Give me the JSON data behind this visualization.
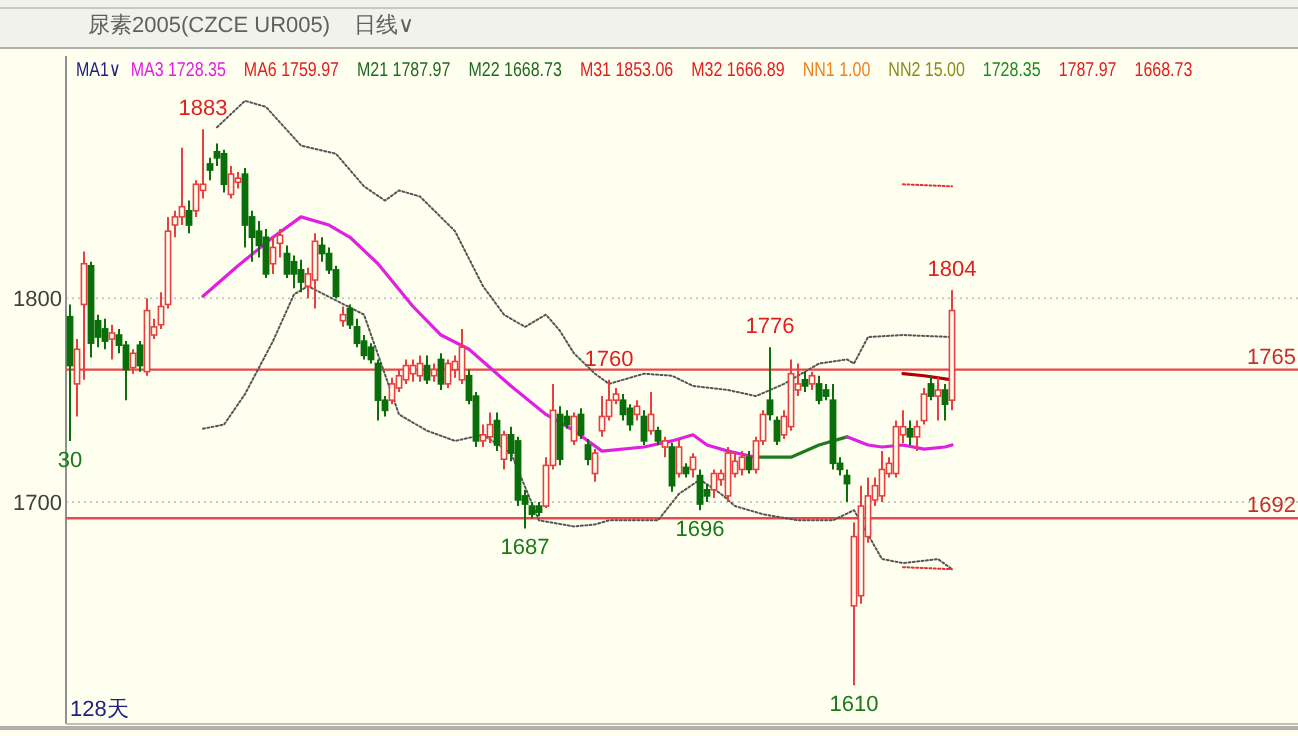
{
  "chart_data": {
    "type": "candlestick",
    "categories": [
      null,
      null,
      null,
      null,
      null,
      null,
      null,
      null,
      null,
      null,
      null,
      null,
      null,
      null,
      null,
      null,
      null,
      null,
      null,
      null,
      null,
      null,
      null,
      null,
      null,
      null,
      null,
      null,
      null,
      null,
      null,
      null,
      null,
      null,
      null,
      null,
      null,
      null,
      null,
      null,
      null,
      null,
      null,
      null,
      null,
      null,
      null,
      null,
      null,
      null,
      null,
      null,
      null,
      null,
      null,
      null,
      null,
      null,
      null,
      null,
      null,
      null,
      null,
      null,
      null,
      null,
      null,
      null,
      null,
      null,
      null,
      null,
      null,
      null,
      null,
      null,
      null,
      null,
      null,
      null,
      null,
      null,
      null,
      null,
      null,
      null,
      null,
      null,
      null,
      null,
      null,
      null,
      null,
      null,
      null,
      null,
      null,
      null,
      null,
      null,
      null,
      null,
      null,
      null,
      null,
      null,
      null,
      null,
      null,
      null,
      null,
      null,
      null,
      null,
      null,
      null,
      null,
      null,
      null,
      null,
      null,
      null,
      null,
      null,
      null,
      null,
      null
    ],
    "ohlc": [
      [
        1791,
        1797,
        1730,
        1767
      ],
      [
        1758,
        1780,
        1742,
        1775
      ],
      [
        1797,
        1823,
        1760,
        1817
      ],
      [
        1816,
        1818,
        1771,
        1778
      ],
      [
        1789,
        1792,
        1776,
        1781
      ],
      [
        1785,
        1790,
        1775,
        1779
      ],
      [
        1780,
        1787,
        1770,
        1783
      ],
      [
        1782,
        1785,
        1773,
        1777
      ],
      [
        1777,
        1779,
        1750,
        1765
      ],
      [
        1766,
        1775,
        1763,
        1773
      ],
      [
        1777,
        1779,
        1764,
        1767
      ],
      [
        1764,
        1800,
        1762,
        1794
      ],
      [
        1782,
        1790,
        1780,
        1786
      ],
      [
        1787,
        1803,
        1785,
        1796
      ],
      [
        1797,
        1840,
        1795,
        1833
      ],
      [
        1836,
        1843,
        1830,
        1840
      ],
      [
        1840,
        1874,
        1836,
        1845
      ],
      [
        1843,
        1848,
        1832,
        1836
      ],
      [
        1843,
        1858,
        1840,
        1856
      ],
      [
        1853,
        1883,
        1849,
        1856
      ],
      [
        1866,
        1869,
        1858,
        1863
      ],
      [
        1872,
        1876,
        1865,
        1869
      ],
      [
        1871,
        1873,
        1852,
        1856
      ],
      [
        1851,
        1865,
        1849,
        1861
      ],
      [
        1857,
        1862,
        1854,
        1859
      ],
      [
        1861,
        1864,
        1825,
        1836
      ],
      [
        1840,
        1843,
        1818,
        1830
      ],
      [
        1833,
        1838,
        1820,
        1826
      ],
      [
        1830,
        1834,
        1810,
        1812
      ],
      [
        1817,
        1830,
        1812,
        1825
      ],
      [
        1827,
        1834,
        1820,
        1831
      ],
      [
        1822,
        1826,
        1810,
        1812
      ],
      [
        1818,
        1821,
        1805,
        1812
      ],
      [
        1814,
        1819,
        1803,
        1808
      ],
      [
        1806,
        1815,
        1800,
        1812
      ],
      [
        1809,
        1832,
        1795,
        1828
      ],
      [
        1826,
        1830,
        1818,
        1822
      ],
      [
        1822,
        1825,
        1812,
        1814
      ],
      [
        1814,
        1816,
        1800,
        1801
      ],
      [
        1789,
        1796,
        1786,
        1792
      ],
      [
        1795,
        1797,
        1785,
        1787
      ],
      [
        1786,
        1790,
        1776,
        1778
      ],
      [
        1779,
        1782,
        1770,
        1772
      ],
      [
        1776,
        1778,
        1768,
        1770
      ],
      [
        1768,
        1770,
        1740,
        1750
      ],
      [
        1750,
        1752,
        1742,
        1745
      ],
      [
        1750,
        1761,
        1748,
        1758
      ],
      [
        1756,
        1765,
        1754,
        1762
      ],
      [
        1760,
        1770,
        1758,
        1767
      ],
      [
        1763,
        1770,
        1759,
        1767
      ],
      [
        1762,
        1772,
        1759,
        1768
      ],
      [
        1767,
        1772,
        1758,
        1760
      ],
      [
        1762,
        1768,
        1759,
        1765
      ],
      [
        1770,
        1773,
        1755,
        1758
      ],
      [
        1758,
        1770,
        1756,
        1768
      ],
      [
        1765,
        1772,
        1761,
        1769
      ],
      [
        1760,
        1785,
        1758,
        1776
      ],
      [
        1762,
        1765,
        1748,
        1750
      ],
      [
        1752,
        1754,
        1727,
        1730
      ],
      [
        1730,
        1738,
        1727,
        1733
      ],
      [
        1732,
        1744,
        1729,
        1738
      ],
      [
        1740,
        1744,
        1725,
        1728
      ],
      [
        1721,
        1735,
        1716,
        1733
      ],
      [
        1733,
        1737,
        1720,
        1724
      ],
      [
        1730,
        1732,
        1698,
        1701
      ],
      [
        1703,
        1706,
        1687,
        1699
      ],
      [
        1698,
        1700,
        1692,
        1694
      ],
      [
        1698,
        1700,
        1693,
        1695
      ],
      [
        1698,
        1722,
        1697,
        1718
      ],
      [
        1718,
        1758,
        1716,
        1745
      ],
      [
        1743,
        1747,
        1718,
        1721
      ],
      [
        1742,
        1745,
        1736,
        1738
      ],
      [
        1730,
        1744,
        1728,
        1742
      ],
      [
        1743,
        1746,
        1731,
        1733
      ],
      [
        1728,
        1731,
        1718,
        1721
      ],
      [
        1714,
        1726,
        1710,
        1724
      ],
      [
        1735,
        1752,
        1732,
        1742
      ],
      [
        1742,
        1760,
        1740,
        1750
      ],
      [
        1750,
        1756,
        1748,
        1753
      ],
      [
        1750,
        1753,
        1740,
        1743
      ],
      [
        1746,
        1748,
        1735,
        1738
      ],
      [
        1743,
        1750,
        1740,
        1747
      ],
      [
        1742,
        1745,
        1728,
        1730
      ],
      [
        1735,
        1754,
        1733,
        1743
      ],
      [
        1735,
        1737,
        1728,
        1730
      ],
      [
        1727,
        1732,
        1722,
        1730
      ],
      [
        1727,
        1729,
        1705,
        1708
      ],
      [
        1714,
        1731,
        1712,
        1727
      ],
      [
        1717,
        1719,
        1712,
        1714
      ],
      [
        1716,
        1724,
        1712,
        1722
      ],
      [
        1713,
        1716,
        1696,
        1699
      ],
      [
        1706,
        1709,
        1700,
        1703
      ],
      [
        1706,
        1716,
        1702,
        1714
      ],
      [
        1711,
        1716,
        1708,
        1714
      ],
      [
        1703,
        1727,
        1700,
        1724
      ],
      [
        1714,
        1725,
        1712,
        1720
      ],
      [
        1716,
        1725,
        1713,
        1722
      ],
      [
        1722,
        1725,
        1714,
        1716
      ],
      [
        1716,
        1732,
        1714,
        1730
      ],
      [
        1730,
        1745,
        1728,
        1743
      ],
      [
        1750,
        1776,
        1740,
        1743
      ],
      [
        1740,
        1742,
        1728,
        1730
      ],
      [
        1733,
        1745,
        1731,
        1742
      ],
      [
        1737,
        1770,
        1735,
        1763
      ],
      [
        1755,
        1768,
        1752,
        1758
      ],
      [
        1760,
        1764,
        1754,
        1757
      ],
      [
        1758,
        1764,
        1755,
        1762
      ],
      [
        1758,
        1762,
        1748,
        1750
      ],
      [
        1755,
        1758,
        1750,
        1752
      ],
      [
        1750,
        1758,
        1716,
        1719
      ],
      [
        1719,
        1722,
        1713,
        1716
      ],
      [
        1713,
        1716,
        1700,
        1709
      ],
      [
        1649,
        1690,
        1610,
        1683
      ],
      [
        1654,
        1708,
        1650,
        1698
      ],
      [
        1683,
        1712,
        1680,
        1703
      ],
      [
        1701,
        1712,
        1698,
        1708
      ],
      [
        1703,
        1725,
        1700,
        1716
      ],
      [
        1714,
        1722,
        1712,
        1719
      ],
      [
        1714,
        1740,
        1712,
        1737
      ],
      [
        1733,
        1745,
        1729,
        1737
      ],
      [
        1736,
        1740,
        1728,
        1732
      ],
      [
        1732,
        1740,
        1725,
        1737
      ],
      [
        1740,
        1756,
        1738,
        1753
      ],
      [
        1758,
        1762,
        1750,
        1752
      ],
      [
        1752,
        1761,
        1740,
        1755
      ],
      [
        1755,
        1758,
        1740,
        1748
      ],
      [
        1750,
        1804,
        1745,
        1794
      ]
    ],
    "series": [
      {
        "type": "line",
        "color": "#e020e0",
        "line_style": "solid",
        "values": [
          null,
          null,
          null,
          null,
          null,
          null,
          null,
          null,
          null,
          null,
          null,
          null,
          null,
          null,
          null,
          null,
          null,
          null,
          null,
          1801,
          null,
          null,
          null,
          null,
          1816,
          null,
          null,
          null,
          null,
          1830,
          null,
          null,
          null,
          1840,
          null,
          null,
          null,
          1836,
          null,
          null,
          1830,
          null,
          null,
          null,
          1817,
          null,
          null,
          null,
          null,
          1796,
          null,
          null,
          null,
          1782,
          null,
          null,
          null,
          1775,
          null,
          null,
          null,
          null,
          null,
          1757,
          null,
          null,
          null,
          null,
          1743,
          null,
          null,
          null,
          1735,
          null,
          null,
          null,
          1725,
          null,
          null,
          null,
          null,
          null,
          1727,
          null,
          null,
          null,
          1730,
          null,
          null,
          1733,
          null,
          1728,
          null,
          null,
          1725,
          null,
          null,
          null,
          1722,
          null,
          null,
          null,
          null,
          null,
          null,
          null,
          null,
          null,
          null,
          null,
          null,
          null,
          null,
          null,
          null,
          null,
          null,
          null,
          null,
          null,
          null,
          null,
          null,
          null,
          null,
          null,
          null
        ]
      },
      {
        "type": "line",
        "color": "#1f7a1f",
        "line_style": "solid",
        "values": [
          null,
          null,
          null,
          null,
          null,
          null,
          null,
          null,
          null,
          null,
          null,
          null,
          null,
          null,
          null,
          null,
          null,
          null,
          null,
          null,
          null,
          null,
          null,
          null,
          null,
          null,
          null,
          null,
          null,
          null,
          null,
          null,
          null,
          null,
          null,
          null,
          null,
          null,
          null,
          null,
          null,
          null,
          null,
          null,
          null,
          null,
          null,
          null,
          null,
          null,
          null,
          null,
          null,
          null,
          null,
          null,
          null,
          null,
          null,
          null,
          null,
          null,
          null,
          null,
          null,
          null,
          null,
          null,
          null,
          null,
          null,
          null,
          null,
          null,
          null,
          null,
          null,
          null,
          null,
          null,
          null,
          null,
          null,
          null,
          null,
          null,
          null,
          null,
          null,
          null,
          null,
          null,
          null,
          null,
          null,
          null,
          null,
          null,
          1722,
          null,
          null,
          null,
          null,
          1722,
          null,
          null,
          null,
          1728,
          null,
          null,
          null,
          1732,
          null,
          null,
          null,
          null,
          null,
          null,
          null,
          null,
          null,
          null,
          null,
          null,
          null,
          null,
          null
        ]
      },
      {
        "type": "line",
        "color": "#e020e0",
        "line_style": "solid",
        "values": [
          null,
          null,
          null,
          null,
          null,
          null,
          null,
          null,
          null,
          null,
          null,
          null,
          null,
          null,
          null,
          null,
          null,
          null,
          null,
          null,
          null,
          null,
          null,
          null,
          null,
          null,
          null,
          null,
          null,
          null,
          null,
          null,
          null,
          null,
          null,
          null,
          null,
          null,
          null,
          null,
          null,
          null,
          null,
          null,
          null,
          null,
          null,
          null,
          null,
          null,
          null,
          null,
          null,
          null,
          null,
          null,
          null,
          null,
          null,
          null,
          null,
          null,
          null,
          null,
          null,
          null,
          null,
          null,
          null,
          null,
          null,
          null,
          null,
          null,
          null,
          null,
          null,
          null,
          null,
          null,
          null,
          null,
          null,
          null,
          null,
          null,
          null,
          null,
          null,
          null,
          null,
          null,
          null,
          null,
          null,
          null,
          null,
          null,
          null,
          null,
          null,
          null,
          null,
          null,
          null,
          null,
          null,
          null,
          null,
          null,
          null,
          1732,
          null,
          null,
          1728,
          null,
          1727,
          null,
          null,
          1728,
          null,
          null,
          1726,
          null,
          null,
          1727,
          1728
        ]
      },
      {
        "type": "line",
        "color": "#b00000",
        "line_style": "solid",
        "values": [
          null,
          null,
          null,
          null,
          null,
          null,
          null,
          null,
          null,
          null,
          null,
          null,
          null,
          null,
          null,
          null,
          null,
          null,
          null,
          null,
          null,
          null,
          null,
          null,
          null,
          null,
          null,
          null,
          null,
          null,
          null,
          null,
          null,
          null,
          null,
          null,
          null,
          null,
          null,
          null,
          null,
          null,
          null,
          null,
          null,
          null,
          null,
          null,
          null,
          null,
          null,
          null,
          null,
          null,
          null,
          null,
          null,
          null,
          null,
          null,
          null,
          null,
          null,
          null,
          null,
          null,
          null,
          null,
          null,
          null,
          null,
          null,
          null,
          null,
          null,
          null,
          null,
          null,
          null,
          null,
          null,
          null,
          null,
          null,
          null,
          null,
          null,
          null,
          null,
          null,
          null,
          null,
          null,
          null,
          null,
          null,
          null,
          null,
          null,
          null,
          null,
          null,
          null,
          null,
          null,
          null,
          null,
          null,
          null,
          null,
          null,
          null,
          null,
          null,
          null,
          null,
          null,
          null,
          null,
          1763,
          null,
          null,
          1762,
          null,
          null,
          null,
          1760
        ]
      },
      {
        "type": "line",
        "color": "#555555",
        "line_style": "dotted",
        "values": [
          null,
          null,
          null,
          null,
          null,
          null,
          null,
          null,
          null,
          null,
          null,
          null,
          null,
          null,
          null,
          null,
          null,
          null,
          null,
          null,
          null,
          1884,
          null,
          null,
          null,
          1897,
          null,
          null,
          1894,
          null,
          null,
          null,
          null,
          1875,
          null,
          null,
          null,
          null,
          1871,
          null,
          null,
          null,
          1855,
          null,
          null,
          1848,
          null,
          1853,
          null,
          null,
          1850,
          null,
          null,
          null,
          null,
          1833,
          null,
          null,
          null,
          1806,
          null,
          null,
          1792,
          null,
          null,
          1786,
          null,
          null,
          1792,
          null,
          1784,
          null,
          1773,
          null,
          null,
          1763,
          null,
          1758,
          null,
          null,
          null,
          null,
          1763,
          null,
          null,
          null,
          1762,
          null,
          null,
          1757,
          null,
          null,
          null,
          null,
          1755,
          null,
          null,
          null,
          1752,
          null,
          null,
          null,
          1758,
          null,
          null,
          null,
          null,
          1768,
          null,
          null,
          null,
          1770,
          1768,
          null,
          1781,
          null,
          null,
          null,
          null,
          1782,
          null,
          null,
          null,
          null,
          null,
          null,
          1781
        ]
      },
      {
        "type": "line",
        "color": "#555555",
        "line_style": "dotted",
        "values": [
          null,
          null,
          null,
          null,
          null,
          null,
          null,
          null,
          null,
          null,
          null,
          null,
          null,
          null,
          null,
          null,
          null,
          null,
          null,
          1736,
          null,
          null,
          1738,
          null,
          null,
          1753,
          null,
          null,
          null,
          1779,
          null,
          null,
          1802,
          null,
          1806,
          null,
          null,
          null,
          1799,
          null,
          null,
          null,
          1792,
          null,
          null,
          null,
          null,
          1743,
          null,
          null,
          null,
          1735,
          null,
          null,
          null,
          1730,
          null,
          null,
          null,
          1733,
          null,
          null,
          null,
          1724,
          null,
          null,
          null,
          1691,
          null,
          null,
          null,
          null,
          1688,
          null,
          null,
          1689,
          null,
          1691,
          null,
          null,
          null,
          null,
          null,
          null,
          1691,
          null,
          null,
          1704,
          null,
          null,
          1711,
          null,
          null,
          1704,
          null,
          1698,
          null,
          null,
          null,
          1694,
          null,
          null,
          null,
          null,
          1691,
          null,
          null,
          null,
          null,
          1691,
          null,
          null,
          1696,
          null,
          1684,
          null,
          1672,
          null,
          null,
          1670,
          null,
          null,
          null,
          null,
          1672,
          null,
          1667
        ]
      },
      {
        "type": "line",
        "color": "#e03030",
        "line_style": "dotted",
        "values": [
          null,
          null,
          null,
          null,
          null,
          null,
          null,
          null,
          null,
          null,
          null,
          null,
          null,
          null,
          null,
          null,
          null,
          null,
          null,
          null,
          null,
          null,
          null,
          null,
          null,
          null,
          null,
          null,
          null,
          null,
          null,
          null,
          null,
          null,
          null,
          null,
          null,
          null,
          null,
          null,
          null,
          null,
          null,
          null,
          null,
          null,
          null,
          null,
          null,
          null,
          null,
          null,
          null,
          null,
          null,
          null,
          null,
          null,
          null,
          null,
          null,
          null,
          null,
          null,
          null,
          null,
          null,
          null,
          null,
          null,
          null,
          null,
          null,
          null,
          null,
          null,
          null,
          null,
          null,
          null,
          null,
          null,
          null,
          null,
          null,
          null,
          null,
          null,
          null,
          null,
          null,
          null,
          null,
          null,
          null,
          null,
          null,
          null,
          null,
          null,
          null,
          null,
          null,
          null,
          null,
          null,
          null,
          null,
          null,
          null,
          null,
          null,
          null,
          null,
          null,
          null,
          null,
          null,
          null,
          1856,
          null,
          null,
          null,
          null,
          null,
          null,
          1855
        ]
      },
      {
        "type": "line",
        "color": "#e03030",
        "line_style": "dotted",
        "values": [
          null,
          null,
          null,
          null,
          null,
          null,
          null,
          null,
          null,
          null,
          null,
          null,
          null,
          null,
          null,
          null,
          null,
          null,
          null,
          null,
          null,
          null,
          null,
          null,
          null,
          null,
          null,
          null,
          null,
          null,
          null,
          null,
          null,
          null,
          null,
          null,
          null,
          null,
          null,
          null,
          null,
          null,
          null,
          null,
          null,
          null,
          null,
          null,
          null,
          null,
          null,
          null,
          null,
          null,
          null,
          null,
          null,
          null,
          null,
          null,
          null,
          null,
          null,
          null,
          null,
          null,
          null,
          null,
          null,
          null,
          null,
          null,
          null,
          null,
          null,
          null,
          null,
          null,
          null,
          null,
          null,
          null,
          null,
          null,
          null,
          null,
          null,
          null,
          null,
          null,
          null,
          null,
          null,
          null,
          null,
          null,
          null,
          null,
          null,
          null,
          null,
          null,
          null,
          null,
          null,
          null,
          null,
          null,
          null,
          null,
          null,
          null,
          null,
          null,
          null,
          null,
          null,
          null,
          null,
          1668,
          null,
          null,
          null,
          null,
          null,
          null,
          1667
        ]
      }
    ],
    "ylim": [
      1591,
      1919
    ],
    "yticks": [
      1700,
      1800
    ],
    "grid": "y",
    "tick_labels": "y",
    "ref_lines": [
      {
        "axis": "y",
        "value": 1765,
        "label": "1765",
        "color": "#e84848"
      },
      {
        "axis": "y",
        "value": 1692,
        "label": "1692",
        "color": "#e84848"
      }
    ],
    "annotations": [
      "尿素2005(CZCE UR005)",
      "日线∨",
      "MA1∨",
      "MA3 1728.35",
      "MA6 1759.97",
      "M21 1787.97",
      "M22 1668.73",
      "M31 1853.06",
      "M32 1666.89",
      "NN1 1.00",
      "NN2 15.00",
      "1728.35",
      "1787.97",
      "1668.73",
      "128天",
      {
        "text": "1883",
        "y": 1883
      },
      {
        "text": "1760",
        "y": 1760
      },
      {
        "text": "1776",
        "y": 1776
      },
      {
        "text": "1804",
        "y": 1804
      },
      {
        "text": "30",
        "y": 1730
      },
      {
        "text": "1687",
        "y": 1687
      },
      {
        "text": "1696",
        "y": 1696
      },
      {
        "text": "1610",
        "y": 1610
      }
    ]
  }
}
